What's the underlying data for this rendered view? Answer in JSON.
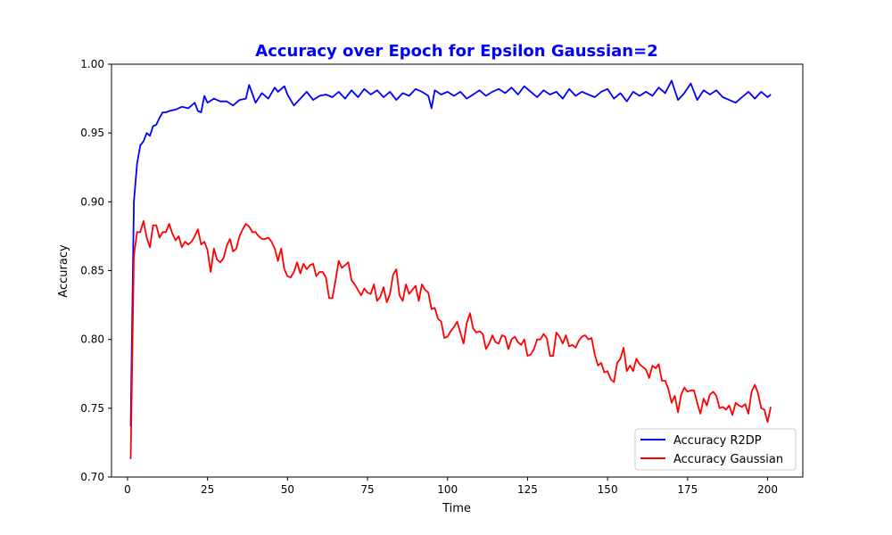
{
  "chart_data": {
    "type": "line",
    "title": "Accuracy over Epoch for Epsilon Gaussian=2",
    "title_color": "#0000ff",
    "xlabel": "Time",
    "ylabel": "Accuracy",
    "xlim": [
      -5,
      211
    ],
    "ylim": [
      0.7,
      1.0
    ],
    "xticks": [
      0,
      25,
      50,
      75,
      100,
      125,
      150,
      175,
      200
    ],
    "yticks": [
      0.7,
      0.75,
      0.8,
      0.85,
      0.9,
      0.95,
      1.0
    ],
    "xtick_labels": [
      "0",
      "25",
      "50",
      "75",
      "100",
      "125",
      "150",
      "175",
      "200"
    ],
    "ytick_labels": [
      "0.70",
      "0.75",
      "0.80",
      "0.85",
      "0.90",
      "0.95",
      "1.00"
    ],
    "grid": false,
    "legend_position": "lower-right",
    "series": [
      {
        "name": "Accuracy R2DP",
        "color": "#0000ff",
        "x": [
          1,
          2,
          3,
          4,
          5,
          6,
          7,
          8,
          9,
          10,
          11,
          12,
          13,
          15,
          17,
          19,
          21,
          22,
          23,
          24,
          25,
          27,
          29,
          31,
          33,
          35,
          37,
          38,
          40,
          42,
          44,
          46,
          47,
          49,
          50,
          52,
          54,
          56,
          58,
          60,
          62,
          64,
          66,
          68,
          70,
          72,
          74,
          76,
          78,
          80,
          82,
          84,
          86,
          88,
          90,
          92,
          94,
          95,
          96,
          98,
          100,
          102,
          104,
          106,
          108,
          110,
          112,
          114,
          116,
          118,
          120,
          122,
          124,
          126,
          128,
          130,
          132,
          134,
          136,
          138,
          140,
          142,
          144,
          146,
          148,
          150,
          152,
          154,
          156,
          158,
          160,
          162,
          164,
          166,
          168,
          170,
          172,
          174,
          176,
          178,
          180,
          182,
          184,
          186,
          188,
          190,
          192,
          194,
          196,
          198,
          200,
          201
        ],
        "values": [
          0.737,
          0.9,
          0.928,
          0.941,
          0.944,
          0.95,
          0.948,
          0.955,
          0.956,
          0.961,
          0.965,
          0.965,
          0.966,
          0.967,
          0.969,
          0.968,
          0.972,
          0.966,
          0.965,
          0.977,
          0.972,
          0.975,
          0.973,
          0.973,
          0.97,
          0.974,
          0.975,
          0.985,
          0.972,
          0.979,
          0.975,
          0.983,
          0.98,
          0.984,
          0.978,
          0.97,
          0.975,
          0.98,
          0.974,
          0.977,
          0.978,
          0.976,
          0.98,
          0.975,
          0.981,
          0.976,
          0.982,
          0.978,
          0.981,
          0.976,
          0.98,
          0.974,
          0.979,
          0.977,
          0.982,
          0.98,
          0.977,
          0.968,
          0.981,
          0.978,
          0.98,
          0.977,
          0.98,
          0.975,
          0.978,
          0.981,
          0.977,
          0.98,
          0.982,
          0.979,
          0.983,
          0.978,
          0.984,
          0.98,
          0.976,
          0.981,
          0.978,
          0.98,
          0.975,
          0.982,
          0.977,
          0.98,
          0.978,
          0.976,
          0.98,
          0.982,
          0.975,
          0.979,
          0.973,
          0.98,
          0.977,
          0.98,
          0.977,
          0.983,
          0.979,
          0.988,
          0.974,
          0.979,
          0.986,
          0.974,
          0.981,
          0.978,
          0.981,
          0.976,
          0.974,
          0.972,
          0.976,
          0.98,
          0.975,
          0.98,
          0.976,
          0.978
        ]
      },
      {
        "name": "Accuracy Gaussian",
        "color": "#ff0000",
        "x": [
          1,
          2,
          3,
          4,
          5,
          6,
          7,
          8,
          9,
          10,
          11,
          12,
          13,
          14,
          15,
          16,
          17,
          18,
          19,
          20,
          21,
          22,
          23,
          24,
          25,
          26,
          27,
          28,
          29,
          30,
          31,
          32,
          33,
          34,
          35,
          36,
          37,
          38,
          39,
          40,
          41,
          42,
          43,
          44,
          45,
          46,
          47,
          48,
          49,
          50,
          51,
          52,
          53,
          54,
          55,
          56,
          57,
          58,
          59,
          60,
          61,
          62,
          63,
          64,
          65,
          66,
          67,
          68,
          69,
          70,
          71,
          72,
          73,
          74,
          75,
          76,
          77,
          78,
          79,
          80,
          81,
          82,
          83,
          84,
          85,
          86,
          87,
          88,
          89,
          90,
          91,
          92,
          93,
          94,
          95,
          96,
          97,
          98,
          99,
          100,
          101,
          102,
          103,
          104,
          105,
          106,
          107,
          108,
          109,
          110,
          111,
          112,
          113,
          114,
          115,
          116,
          117,
          118,
          119,
          120,
          121,
          122,
          123,
          124,
          125,
          126,
          127,
          128,
          129,
          130,
          131,
          132,
          133,
          134,
          135,
          136,
          137,
          138,
          139,
          140,
          141,
          142,
          143,
          144,
          145,
          146,
          147,
          148,
          149,
          150,
          151,
          152,
          153,
          154,
          155,
          156,
          157,
          158,
          159,
          160,
          161,
          162,
          163,
          164,
          165,
          166,
          167,
          168,
          169,
          170,
          171,
          172,
          173,
          174,
          175,
          176,
          177,
          178,
          179,
          180,
          181,
          182,
          183,
          184,
          185,
          186,
          187,
          188,
          189,
          190,
          191,
          192,
          193,
          194,
          195,
          196,
          197,
          198,
          199,
          200,
          201
        ],
        "values": [
          0.713,
          0.861,
          0.878,
          0.878,
          0.886,
          0.874,
          0.867,
          0.883,
          0.883,
          0.874,
          0.878,
          0.878,
          0.884,
          0.877,
          0.872,
          0.875,
          0.867,
          0.871,
          0.869,
          0.871,
          0.875,
          0.88,
          0.869,
          0.871,
          0.865,
          0.849,
          0.866,
          0.858,
          0.856,
          0.859,
          0.868,
          0.873,
          0.864,
          0.866,
          0.875,
          0.88,
          0.884,
          0.882,
          0.878,
          0.878,
          0.875,
          0.873,
          0.873,
          0.874,
          0.871,
          0.866,
          0.857,
          0.866,
          0.851,
          0.846,
          0.845,
          0.849,
          0.856,
          0.848,
          0.855,
          0.851,
          0.854,
          0.855,
          0.846,
          0.849,
          0.849,
          0.845,
          0.83,
          0.83,
          0.843,
          0.857,
          0.852,
          0.854,
          0.856,
          0.843,
          0.84,
          0.836,
          0.832,
          0.837,
          0.834,
          0.833,
          0.84,
          0.828,
          0.831,
          0.838,
          0.827,
          0.833,
          0.847,
          0.851,
          0.832,
          0.828,
          0.84,
          0.833,
          0.836,
          0.839,
          0.828,
          0.84,
          0.836,
          0.834,
          0.822,
          0.823,
          0.815,
          0.813,
          0.801,
          0.802,
          0.806,
          0.809,
          0.813,
          0.805,
          0.797,
          0.812,
          0.819,
          0.808,
          0.805,
          0.806,
          0.804,
          0.793,
          0.797,
          0.803,
          0.798,
          0.797,
          0.803,
          0.802,
          0.793,
          0.8,
          0.802,
          0.798,
          0.796,
          0.8,
          0.788,
          0.789,
          0.793,
          0.8,
          0.8,
          0.804,
          0.801,
          0.788,
          0.788,
          0.805,
          0.802,
          0.797,
          0.803,
          0.795,
          0.796,
          0.794,
          0.799,
          0.802,
          0.803,
          0.8,
          0.801,
          0.789,
          0.781,
          0.783,
          0.776,
          0.777,
          0.771,
          0.769,
          0.783,
          0.786,
          0.794,
          0.777,
          0.781,
          0.777,
          0.786,
          0.782,
          0.78,
          0.778,
          0.772,
          0.781,
          0.779,
          0.782,
          0.77,
          0.77,
          0.764,
          0.754,
          0.759,
          0.747,
          0.76,
          0.765,
          0.762,
          0.763,
          0.763,
          0.754,
          0.746,
          0.757,
          0.752,
          0.76,
          0.762,
          0.759,
          0.75,
          0.751,
          0.749,
          0.752,
          0.745,
          0.754,
          0.752,
          0.751,
          0.753,
          0.746,
          0.762,
          0.767,
          0.761,
          0.75,
          0.749,
          0.74,
          0.751
        ]
      }
    ]
  }
}
